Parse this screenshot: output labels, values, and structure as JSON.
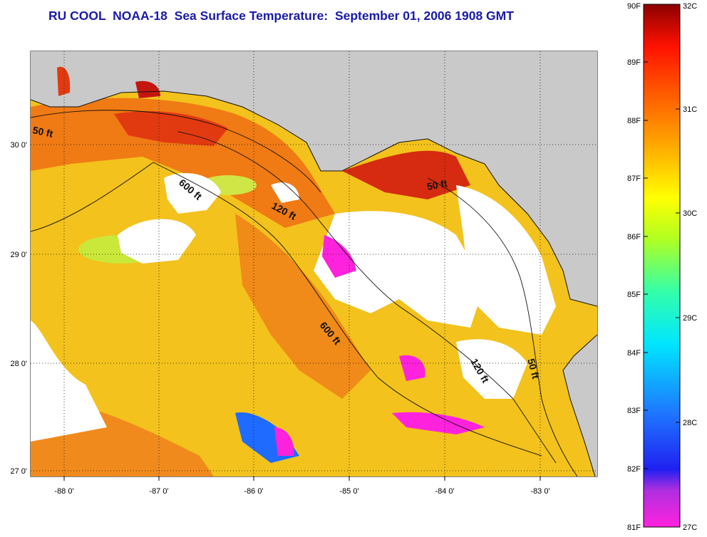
{
  "title": "RU COOL  NOAA-18  Sea Surface Temperature:  September 01, 2006 1908 GMT",
  "map": {
    "x_ticks": [
      "-88 0'",
      "-87 0'",
      "-86 0'",
      "-85 0'",
      "-84 0'",
      "-83 0'"
    ],
    "y_ticks": [
      "30 0'",
      "29 0'",
      "28 0'",
      "27 0'"
    ],
    "contour_labels": [
      "50 ft",
      "600 ft",
      "120 ft",
      "50 ft",
      "600 ft",
      "120 ft",
      "50 ft"
    ]
  },
  "colorbar": {
    "fahrenheit_labels": [
      "90F",
      "89F",
      "88F",
      "87F",
      "86F",
      "85F",
      "84F",
      "83F",
      "82F",
      "81F"
    ],
    "celsius_labels": [
      "32C",
      "31C",
      "30C",
      "29C",
      "28C",
      "27C"
    ],
    "colors": [
      "#ff22dd",
      "#9b2fe0",
      "#1515f0",
      "#1e78ff",
      "#00e0ff",
      "#33ffaa",
      "#b0ff22",
      "#ffff00",
      "#ffa800",
      "#ff5a00",
      "#ff1100",
      "#8b0000"
    ]
  }
}
